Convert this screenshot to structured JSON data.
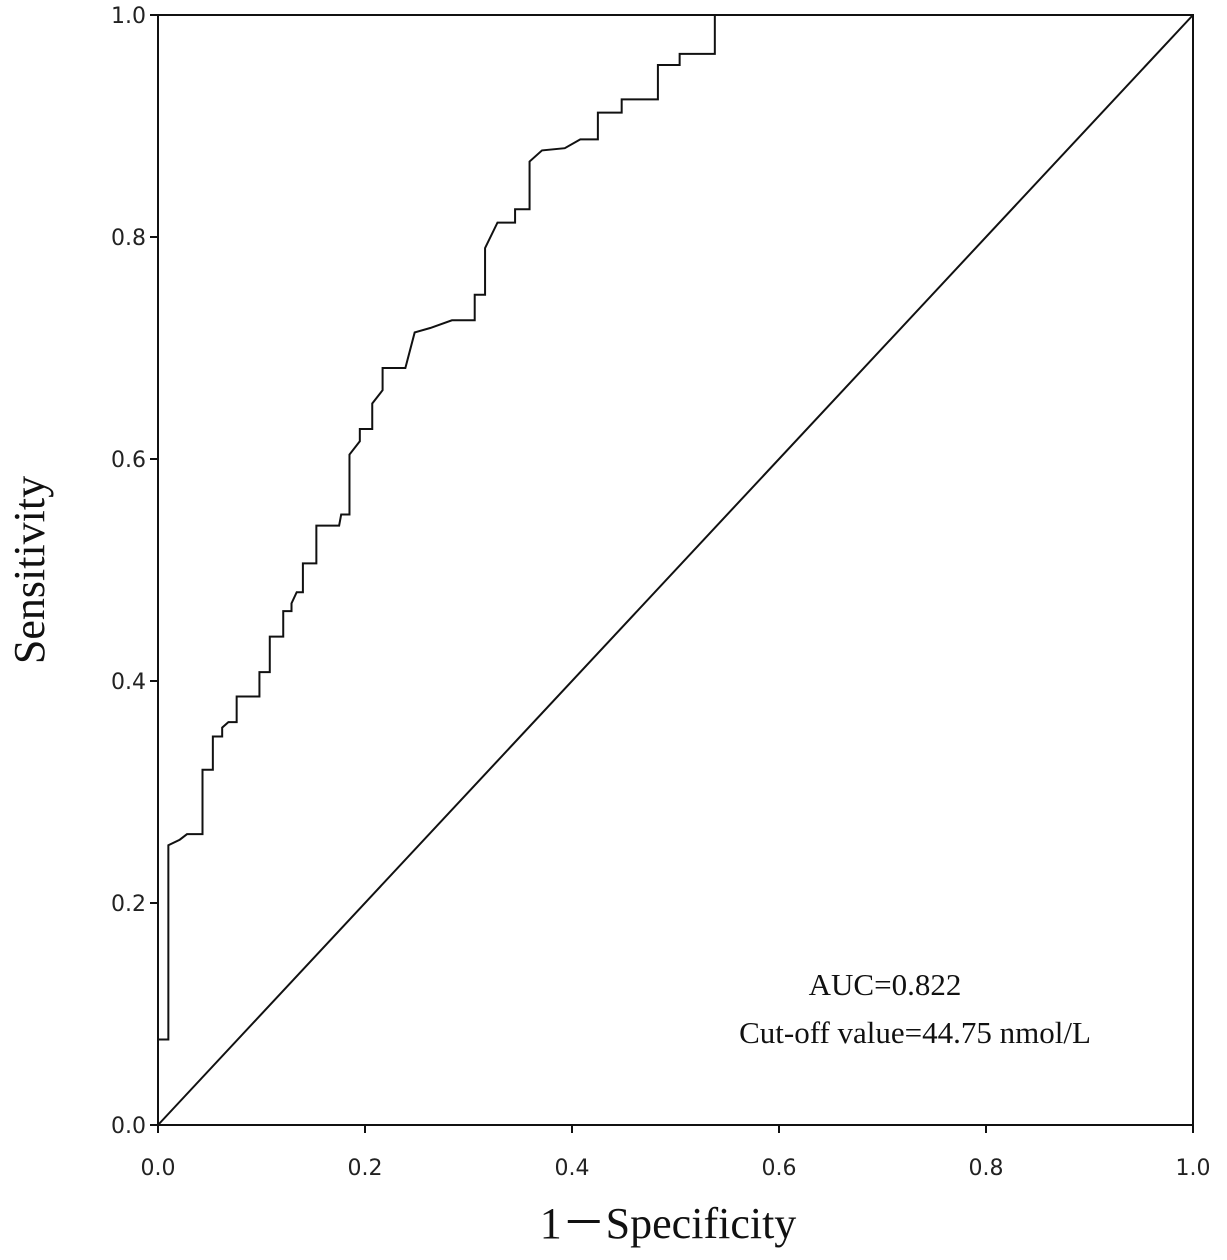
{
  "chart_data": {
    "type": "line",
    "xlabel": "1－Specificity",
    "ylabel": "Sensitivity",
    "annotations": [
      "AUC=0.822",
      "Cut-off value=44.75 nmol/L"
    ],
    "xlim": [
      0,
      1
    ],
    "ylim": [
      0,
      1
    ],
    "xticks": [
      {
        "value": 0,
        "label": "0.0"
      },
      0.2,
      0.4,
      0.6,
      0.8,
      {
        "value": 1,
        "label": "1.0"
      }
    ],
    "yticks": [
      {
        "value": 0,
        "label": "0.0"
      },
      0.2,
      0.4,
      0.6,
      0.8,
      {
        "value": 1,
        "label": "1.0"
      }
    ],
    "grid": false,
    "series": [
      {
        "color": "#111111",
        "x": [
          0,
          0,
          0.01,
          0.01,
          0.021,
          0.028,
          0.043,
          0.043,
          0.053,
          0.053,
          0.062,
          0.062,
          0.068,
          0.076,
          0.076,
          0.098,
          0.098,
          0.108,
          0.108,
          0.121,
          0.121,
          0.129,
          0.129,
          0.134,
          0.14,
          0.14,
          0.153,
          0.153,
          0.175,
          0.177,
          0.185,
          0.185,
          0.195,
          0.195,
          0.207,
          0.207,
          0.217,
          0.217,
          0.239,
          0.248,
          0.263,
          0.284,
          0.306,
          0.306,
          0.316,
          0.316,
          0.328,
          0.345,
          0.345,
          0.359,
          0.359,
          0.371,
          0.393,
          0.408,
          0.425,
          0.425,
          0.448,
          0.448,
          0.483,
          0.483,
          0.504,
          0.504,
          0.538,
          0.538,
          1
        ],
        "values": [
          0,
          0.077,
          0.077,
          0.252,
          0.257,
          0.262,
          0.262,
          0.32,
          0.32,
          0.35,
          0.35,
          0.358,
          0.363,
          0.363,
          0.386,
          0.386,
          0.408,
          0.408,
          0.44,
          0.44,
          0.463,
          0.463,
          0.47,
          0.48,
          0.48,
          0.506,
          0.506,
          0.54,
          0.54,
          0.55,
          0.55,
          0.604,
          0.616,
          0.627,
          0.627,
          0.65,
          0.662,
          0.682,
          0.682,
          0.714,
          0.718,
          0.725,
          0.725,
          0.748,
          0.748,
          0.79,
          0.813,
          0.813,
          0.825,
          0.825,
          0.868,
          0.878,
          0.88,
          0.888,
          0.888,
          0.912,
          0.912,
          0.924,
          0.924,
          0.955,
          0.955,
          0.965,
          0.965,
          1,
          1
        ]
      },
      {
        "color": "#111111",
        "x": [
          0,
          1
        ],
        "values": [
          0,
          1
        ]
      }
    ]
  }
}
